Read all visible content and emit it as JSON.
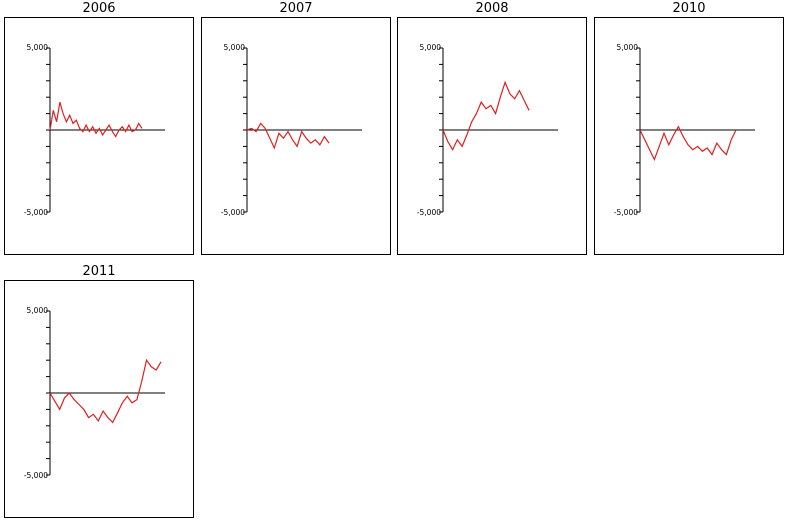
{
  "chart_data": [
    {
      "type": "line",
      "title": "2006",
      "ylim": [
        -5000,
        5000
      ],
      "yticks": [
        "5,000",
        "-5,000"
      ],
      "color": "#e02020",
      "values": [
        0,
        1200,
        500,
        1700,
        1000,
        500,
        900,
        400,
        600,
        100,
        -100,
        300,
        -100,
        200,
        -200,
        100,
        -300,
        0,
        300,
        -100,
        -400,
        0,
        200,
        -100,
        300,
        -100,
        0,
        400,
        100
      ]
    },
    {
      "type": "line",
      "title": "2007",
      "ylim": [
        -5000,
        5000
      ],
      "yticks": [
        "5,000",
        "-5,000"
      ],
      "color": "#e02020",
      "values": [
        0,
        100,
        -100,
        400,
        100,
        -500,
        -1100,
        -200,
        -500,
        -100,
        -600,
        -1000,
        -100,
        -500,
        -800,
        -600,
        -900,
        -400,
        -800
      ]
    },
    {
      "type": "line",
      "title": "2008",
      "ylim": [
        -5000,
        5000
      ],
      "yticks": [
        "5,000",
        "-5,000"
      ],
      "color": "#e02020",
      "values": [
        0,
        -700,
        -1200,
        -600,
        -1000,
        -300,
        500,
        1000,
        1700,
        1300,
        1500,
        1000,
        2000,
        2900,
        2200,
        1900,
        2400,
        1800,
        1200
      ]
    },
    {
      "type": "line",
      "title": "2010",
      "ylim": [
        -5000,
        5000
      ],
      "yticks": [
        "5,000",
        "-5,000"
      ],
      "color": "#e02020",
      "values": [
        0,
        -600,
        -1200,
        -1800,
        -1000,
        -200,
        -900,
        -300,
        200,
        -400,
        -900,
        -1200,
        -1000,
        -1300,
        -1100,
        -1500,
        -800,
        -1200,
        -1500,
        -600,
        0
      ]
    },
    {
      "type": "line",
      "title": "2011",
      "ylim": [
        -5000,
        5000
      ],
      "yticks": [
        "5,000",
        "-5,000"
      ],
      "color": "#e02020",
      "values": [
        0,
        -500,
        -1000,
        -300,
        0,
        -400,
        -700,
        -1000,
        -1500,
        -1300,
        -1700,
        -1100,
        -1500,
        -1800,
        -1200,
        -600,
        -200,
        -600,
        -400,
        700,
        2000,
        1600,
        1400,
        1900
      ]
    }
  ]
}
